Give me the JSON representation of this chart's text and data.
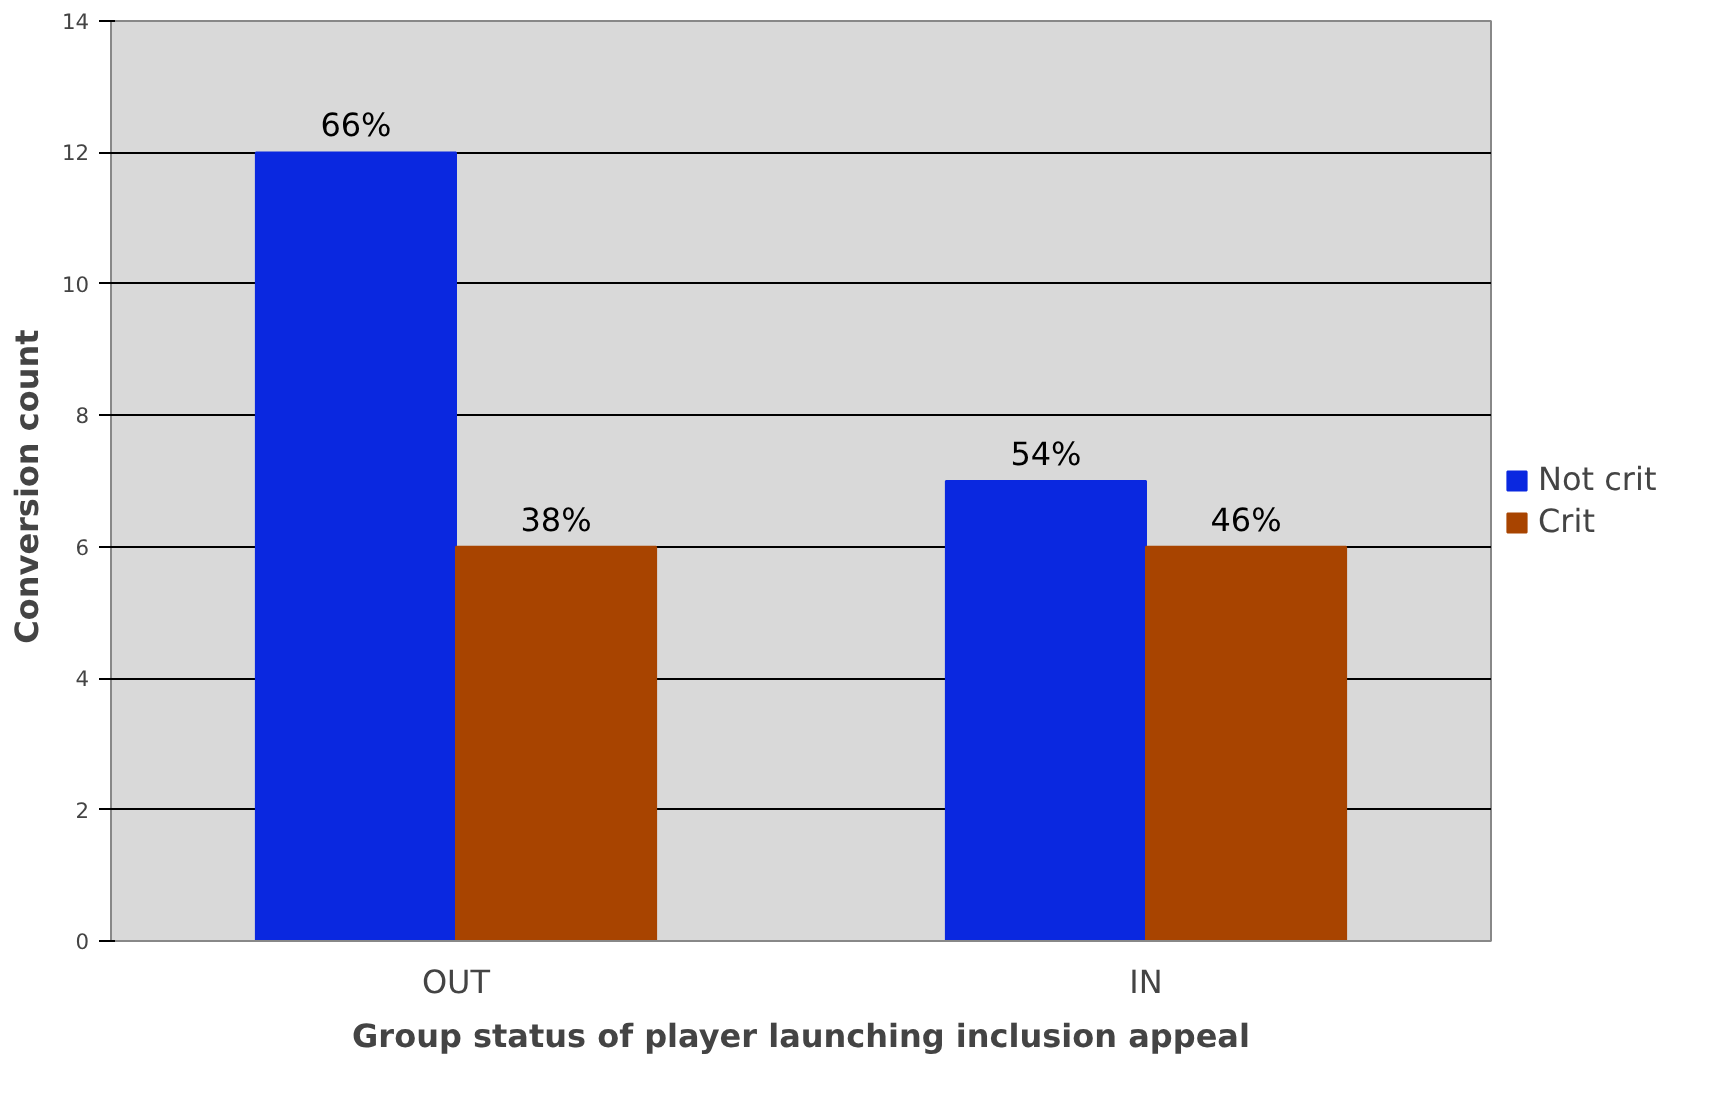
{
  "chart_data": {
    "type": "bar",
    "xlabel": "Group status of player launching inclusion appeal",
    "ylabel": "Conversion  count",
    "categories": [
      "OUT",
      "IN"
    ],
    "series": [
      {
        "name": "Not crit",
        "color": "#0a28e0",
        "values": [
          12,
          7
        ]
      },
      {
        "name": "Crit",
        "color": "#a84400",
        "values": [
          6,
          6
        ]
      }
    ],
    "annotations": [
      {
        "text": "66%",
        "x": "OUT",
        "y": 12
      },
      {
        "text": "38%",
        "x": "OUT",
        "y": 6
      },
      {
        "text": "54%",
        "x": "IN",
        "y": 7
      },
      {
        "text": "46%",
        "x": "IN",
        "y": 6
      }
    ],
    "ylim": [
      0,
      14
    ],
    "yticks": [
      0,
      2,
      4,
      6,
      8,
      10,
      12,
      14
    ],
    "grid": "y",
    "legend": "right"
  }
}
